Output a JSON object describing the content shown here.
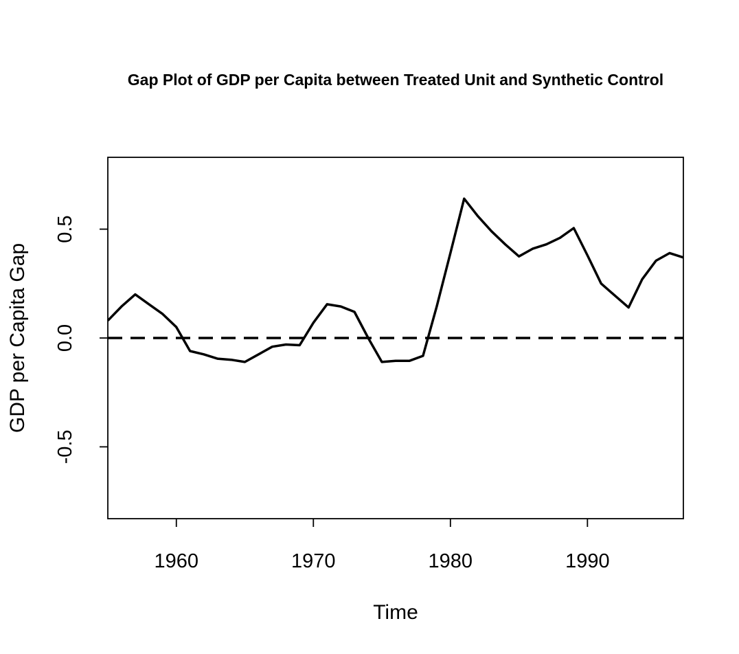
{
  "chart_data": {
    "type": "line",
    "title": "Gap Plot of GDP per Capita between Treated Unit and Synthetic Control",
    "xlabel": "Time",
    "ylabel": "GDP per Capita Gap",
    "xlim": [
      1955,
      1997
    ],
    "ylim": [
      -0.83,
      0.83
    ],
    "x_ticks": [
      1960,
      1970,
      1980,
      1990
    ],
    "x_tick_labels": [
      "1960",
      "1970",
      "1980",
      "1990"
    ],
    "y_ticks": [
      -0.5,
      0.0,
      0.5
    ],
    "y_tick_labels": [
      "-0.5",
      "0.0",
      "0.5"
    ],
    "grid": false,
    "reference_line": {
      "y": 0.0,
      "style": "dashed"
    },
    "series": [
      {
        "x": [
          1955,
          1956,
          1957,
          1958,
          1959,
          1960,
          1961,
          1962,
          1963,
          1964,
          1965,
          1966,
          1967,
          1968,
          1969,
          1970,
          1971,
          1972,
          1973,
          1974,
          1975,
          1976,
          1977,
          1978,
          1979,
          1980,
          1981,
          1982,
          1983,
          1984,
          1985,
          1986,
          1987,
          1988,
          1989,
          1990,
          1991,
          1992,
          1993,
          1994,
          1995,
          1996,
          1997
        ],
        "values": [
          0.08,
          0.145,
          0.2,
          0.155,
          0.11,
          0.05,
          -0.06,
          -0.075,
          -0.095,
          -0.1,
          -0.11,
          -0.075,
          -0.04,
          -0.03,
          -0.033,
          0.07,
          0.155,
          0.145,
          0.12,
          0.0,
          -0.11,
          -0.105,
          -0.105,
          -0.082,
          0.145,
          0.39,
          0.64,
          0.56,
          0.49,
          0.43,
          0.375,
          0.41,
          0.43,
          0.46,
          0.505,
          0.38,
          0.25,
          0.195,
          0.14,
          0.27,
          0.355,
          0.39,
          0.37
        ],
        "color": "#000000"
      }
    ]
  }
}
